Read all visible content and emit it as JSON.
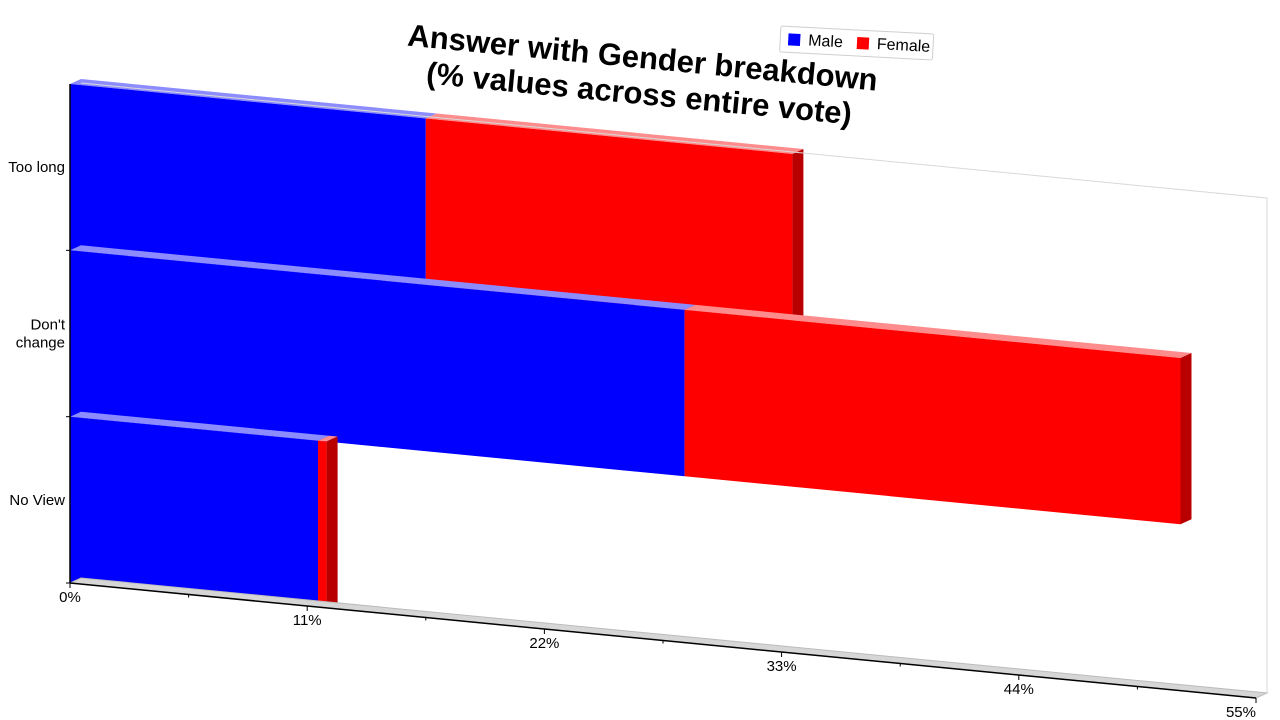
{
  "chart_data": {
    "type": "bar",
    "orientation": "horizontal",
    "stacked": true,
    "title": "Answer with Gender breakdown\n(% values across entire vote)",
    "categories": [
      "Too long",
      "Don't change",
      "No View"
    ],
    "series": [
      {
        "name": "Male",
        "color": "#0000ff",
        "values": [
          16.5,
          28.5,
          11.5
        ]
      },
      {
        "name": "Female",
        "color": "#ff0000",
        "values": [
          17,
          23,
          0.4
        ]
      }
    ],
    "xlim": [
      0,
      55
    ],
    "xticks": [
      0,
      11,
      22,
      33,
      44,
      55
    ],
    "xtick_labels": [
      "0%",
      "11%",
      "22%",
      "33%",
      "44%",
      "55%"
    ],
    "legend_position": "top",
    "grid": false
  }
}
